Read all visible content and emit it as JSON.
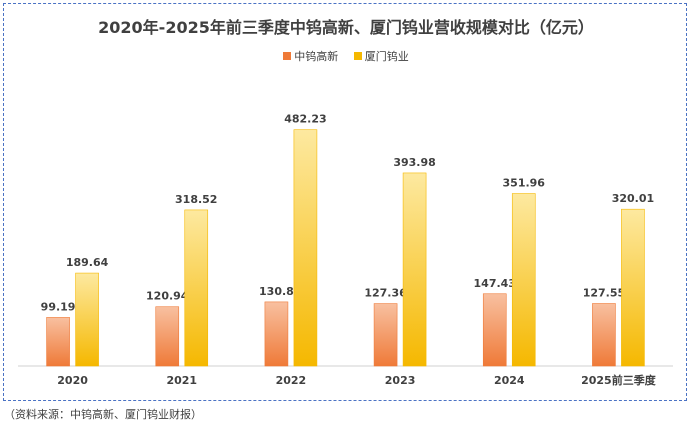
{
  "chart_data": {
    "type": "bar",
    "title": "2020年-2025年前三季度中钨高新、厦门钨业营收规模对比（亿元）",
    "categories": [
      "2020",
      "2021",
      "2022",
      "2023",
      "2024",
      "2025前三季度"
    ],
    "series": [
      {
        "name": "中钨高新",
        "values": [
          99.19,
          120.94,
          130.8,
          127.36,
          147.43,
          127.55
        ],
        "value_labels": [
          "99.19",
          "120.94",
          "130.8",
          "127.36",
          "147.43",
          "127.55"
        ],
        "color_top": "#f8c0a0",
        "color_bottom": "#ef7a38"
      },
      {
        "name": "厦门钨业",
        "values": [
          189.64,
          318.52,
          482.23,
          393.98,
          351.96,
          320.01
        ],
        "value_labels": [
          "189.64",
          "318.52",
          "482.23",
          "393.98",
          "351.96",
          "320.01"
        ],
        "color_top": "#fde9a0",
        "color_bottom": "#f5b800"
      }
    ],
    "ylim": [
      0,
      500
    ],
    "xlabel": "",
    "ylabel": "",
    "grid": false,
    "legend": "top-center"
  },
  "source": "（资料来源：中钨高新、厦门钨业财报）"
}
